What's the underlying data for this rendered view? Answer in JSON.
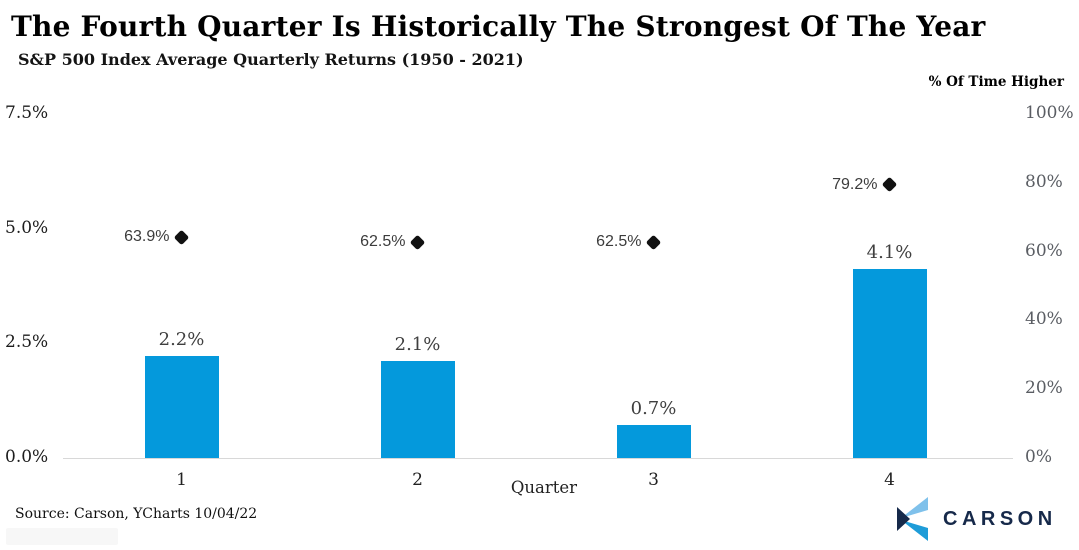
{
  "header": {
    "title": "The Fourth Quarter Is Historically The Strongest Of The Year",
    "subtitle": "S&P 500 Index Average Quarterly Returns (1950 - 2021)"
  },
  "chart_data": {
    "type": "bar",
    "categories": [
      "1",
      "2",
      "3",
      "4"
    ],
    "xlabel": "Quarter",
    "series": [
      {
        "name": "Average quarterly return",
        "type": "bar",
        "axis": "left",
        "color": "#0499DC",
        "values": [
          2.2,
          2.1,
          0.7,
          4.1
        ],
        "labels": [
          "2.2%",
          "2.1%",
          "0.7%",
          "4.1%"
        ]
      },
      {
        "name": "% Of Time Higher",
        "type": "scatter",
        "marker": "diamond",
        "axis": "right",
        "color": "#111111",
        "values": [
          63.9,
          62.5,
          62.5,
          79.2
        ],
        "labels": [
          "63.9%",
          "62.5%",
          "62.5%",
          "79.2%"
        ]
      }
    ],
    "left_axis": {
      "ticks": [
        "0.0%",
        "2.5%",
        "5.0%",
        "7.5%"
      ],
      "values": [
        0,
        2.5,
        5,
        7.5
      ],
      "range": [
        0,
        7.5
      ]
    },
    "right_axis": {
      "title": "% Of Time Higher",
      "ticks": [
        "0%",
        "20%",
        "40%",
        "60%",
        "80%",
        "100%"
      ],
      "values": [
        0,
        20,
        40,
        60,
        80,
        100
      ],
      "range": [
        0,
        100
      ]
    },
    "grid": false,
    "legend": "none"
  },
  "footer": {
    "source": "Source: Carson, YCharts 10/04/22",
    "logo_text": "CARSON"
  },
  "colors": {
    "bar": "#0499DC",
    "diamond": "#111111",
    "axis_line": "#D8D8D8",
    "logo_navy": "#16294A",
    "logo_light_blue": "#7FC1EB",
    "logo_blue": "#1E9CD8"
  }
}
